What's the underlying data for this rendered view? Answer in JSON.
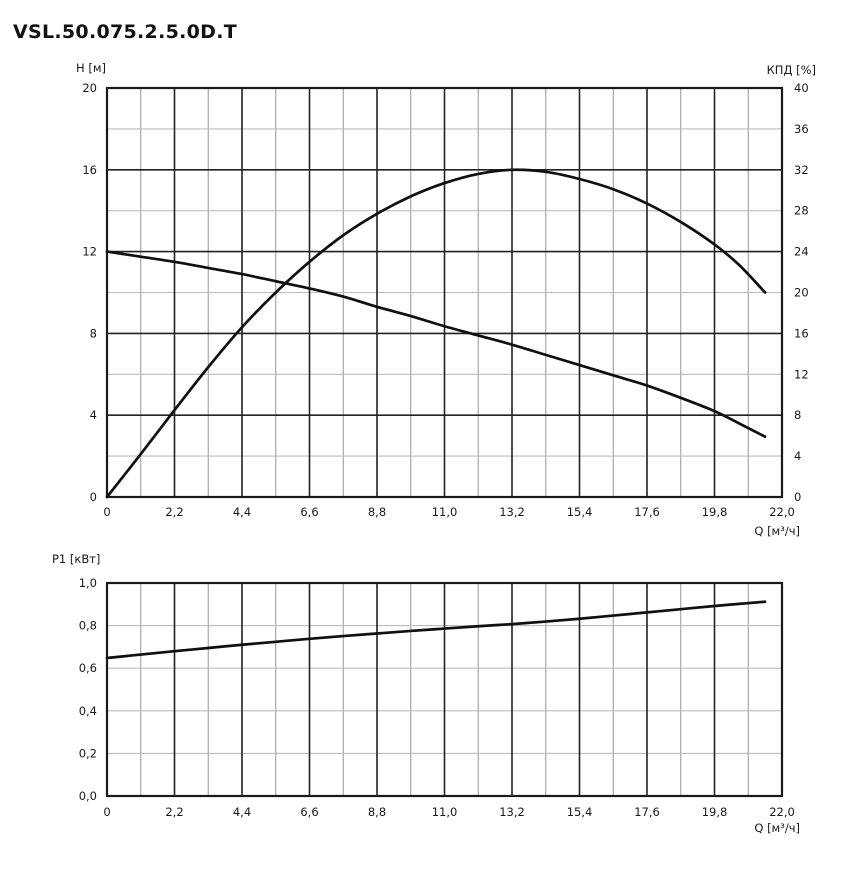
{
  "page": {
    "title": "VSL.50.075.2.5.0D.T",
    "background": "#ffffff"
  },
  "colors": {
    "text": "#1a1a1a",
    "curve": "#101010",
    "grid_major": "#222222",
    "grid_minor_vertical": "#9e9e9e",
    "grid_minor_horizontal": "#bdbdbd",
    "plot_border": "#1a1a1a"
  },
  "chart_data": [
    {
      "type": "line",
      "id": "head-efficiency-chart",
      "title": "",
      "xlabel": "Q [м³/ч]",
      "ylabel_left": "H [м]",
      "ylabel_right": "КПД [%]",
      "xlim": [
        0,
        22
      ],
      "grid": "on",
      "x_major_ticks": [
        0,
        2.2,
        4.4,
        6.6,
        8.8,
        11,
        13.2,
        15.4,
        17.6,
        19.8,
        22
      ],
      "x_tick_labels": [
        "0",
        "2,2",
        "4,4",
        "6,6",
        "8,8",
        "11,0",
        "13,2",
        "15,4",
        "17,6",
        "19,8",
        "22,0"
      ],
      "x_minor_ticks": [
        1.1,
        3.3,
        5.5,
        7.7,
        9.9,
        12.1,
        14.3,
        16.5,
        18.7,
        20.9
      ],
      "left_axis": {
        "lim": [
          0,
          20
        ],
        "tick_values": [
          20,
          16,
          12,
          8,
          4,
          0
        ],
        "tick_labels": [
          "20",
          "16",
          "12",
          "8",
          "4",
          "0"
        ],
        "grid_dark": [
          16,
          12,
          8,
          4
        ],
        "grid_light": [
          18,
          14,
          10,
          6,
          2
        ]
      },
      "right_axis": {
        "lim": [
          0,
          40
        ],
        "tick_values": [
          40,
          36,
          32,
          28,
          24,
          20,
          16,
          12,
          8,
          4,
          0
        ],
        "tick_labels": [
          "40",
          "36",
          "32",
          "28",
          "24",
          "20",
          "16",
          "12",
          "8",
          "4",
          "0"
        ]
      },
      "series": [
        {
          "id": "curve-head",
          "name": "H",
          "axis": "left",
          "points": [
            [
              0,
              12.0
            ],
            [
              1.1,
              11.75
            ],
            [
              2.2,
              11.5
            ],
            [
              3.3,
              11.2
            ],
            [
              4.4,
              10.9
            ],
            [
              5.5,
              10.55
            ],
            [
              6.6,
              10.2
            ],
            [
              7.7,
              9.8
            ],
            [
              8.8,
              9.3
            ],
            [
              9.9,
              8.85
            ],
            [
              11,
              8.35
            ],
            [
              12.1,
              7.9
            ],
            [
              13.2,
              7.45
            ],
            [
              14.3,
              6.95
            ],
            [
              15.4,
              6.45
            ],
            [
              16.5,
              5.95
            ],
            [
              17.6,
              5.45
            ],
            [
              18.7,
              4.85
            ],
            [
              19.8,
              4.2
            ],
            [
              20.6,
              3.6
            ],
            [
              21.45,
              2.95
            ]
          ]
        },
        {
          "id": "curve-efficiency",
          "name": "КПД",
          "axis": "right",
          "points": [
            [
              0,
              0
            ],
            [
              1.1,
              4.2
            ],
            [
              2.2,
              8.5
            ],
            [
              3.3,
              12.7
            ],
            [
              4.4,
              16.6
            ],
            [
              5.5,
              20.0
            ],
            [
              6.6,
              23.0
            ],
            [
              7.7,
              25.6
            ],
            [
              8.8,
              27.7
            ],
            [
              9.9,
              29.4
            ],
            [
              11,
              30.7
            ],
            [
              12.1,
              31.6
            ],
            [
              13.2,
              32.0
            ],
            [
              14.3,
              31.8
            ],
            [
              15.4,
              31.1
            ],
            [
              16.5,
              30.1
            ],
            [
              17.6,
              28.7
            ],
            [
              18.7,
              26.9
            ],
            [
              19.8,
              24.7
            ],
            [
              20.6,
              22.7
            ],
            [
              21.45,
              20.0
            ]
          ]
        }
      ]
    },
    {
      "type": "line",
      "id": "power-chart",
      "title": "",
      "xlabel": "Q [м³/ч]",
      "ylabel_left": "P1 [кВт]",
      "xlim": [
        0,
        22
      ],
      "grid": "on",
      "x_major_ticks": [
        0,
        2.2,
        4.4,
        6.6,
        8.8,
        11,
        13.2,
        15.4,
        17.6,
        19.8,
        22
      ],
      "x_tick_labels": [
        "0",
        "2,2",
        "4,4",
        "6,6",
        "8,8",
        "11,0",
        "13,2",
        "15,4",
        "17,6",
        "19,8",
        "22,0"
      ],
      "x_minor_ticks": [
        1.1,
        3.3,
        5.5,
        7.7,
        9.9,
        12.1,
        14.3,
        16.5,
        18.7,
        20.9
      ],
      "left_axis": {
        "lim": [
          0,
          1
        ],
        "tick_values": [
          1,
          0.8,
          0.6,
          0.4,
          0.2,
          0
        ],
        "tick_labels": [
          "1,0",
          "0,8",
          "0,6",
          "0,4",
          "0,2",
          "0,0"
        ],
        "grid_dark": [],
        "grid_light": [
          0.8,
          0.6,
          0.4,
          0.2
        ]
      },
      "series": [
        {
          "id": "curve-power",
          "name": "P1",
          "axis": "left",
          "points": [
            [
              0,
              0.648
            ],
            [
              1.1,
              0.664
            ],
            [
              2.2,
              0.68
            ],
            [
              3.3,
              0.695
            ],
            [
              4.4,
              0.71
            ],
            [
              5.5,
              0.724
            ],
            [
              6.6,
              0.738
            ],
            [
              7.7,
              0.751
            ],
            [
              8.8,
              0.763
            ],
            [
              9.9,
              0.775
            ],
            [
              11,
              0.786
            ],
            [
              12.1,
              0.797
            ],
            [
              13.2,
              0.807
            ],
            [
              14.3,
              0.819
            ],
            [
              15.4,
              0.832
            ],
            [
              16.5,
              0.847
            ],
            [
              17.6,
              0.862
            ],
            [
              18.7,
              0.877
            ],
            [
              19.8,
              0.892
            ],
            [
              20.6,
              0.902
            ],
            [
              21.45,
              0.912
            ]
          ]
        }
      ]
    }
  ]
}
